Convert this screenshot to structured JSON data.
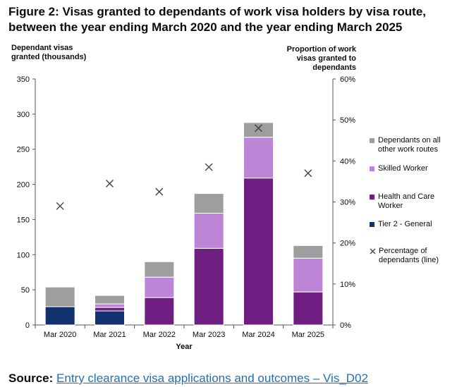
{
  "figure": {
    "title": "Figure 2: Visas granted to dependants of work visa holders by visa route, between the year ending March 2020 and the year ending March 2025"
  },
  "source": {
    "label": "Source:",
    "link_text": "Entry clearance visa applications and outcomes – Vis_D02"
  },
  "colors": {
    "tier2_general": "#12316f",
    "health_and_care": "#6e1f81",
    "skilled_worker": "#be84d5",
    "other_work_routes": "#9e9e9e",
    "line_marker": "#404040",
    "link": "#1d70b8"
  },
  "chart_data": {
    "type": "bar",
    "stacked": true,
    "categories": [
      "Mar 2020",
      "Mar 2021",
      "Mar 2022",
      "Mar 2023",
      "Mar 2024",
      "Mar 2025"
    ],
    "xlabel": "Year",
    "ylabel": "Dependant visas granted (thousands)",
    "y2label": "Proportion of work visas granted to dependants",
    "ylim": [
      0,
      350
    ],
    "yticks": [
      0,
      50,
      100,
      150,
      200,
      250,
      300,
      350
    ],
    "y2lim": [
      0,
      60
    ],
    "y2ticks": [
      "0%",
      "10%",
      "20%",
      "30%",
      "40%",
      "50%",
      "60%"
    ],
    "grid": false,
    "legend_position": "right",
    "series": [
      {
        "name": "Tier 2 - General",
        "color_key": "tier2_general",
        "values": [
          26,
          20,
          0,
          0,
          0,
          0
        ]
      },
      {
        "name": "Health and Care Worker",
        "color_key": "health_and_care",
        "values": [
          0,
          5,
          39,
          109,
          209,
          47
        ]
      },
      {
        "name": "Skilled Worker",
        "color_key": "skilled_worker",
        "values": [
          0,
          5,
          29,
          50,
          58,
          48
        ]
      },
      {
        "name": "Dependants on all other work routes",
        "color_key": "other_work_routes",
        "values": [
          28,
          12,
          22,
          28,
          21,
          18
        ]
      }
    ],
    "line_series": {
      "name": "Percentage of dependants (line)",
      "axis": "right",
      "marker": "x",
      "values": [
        29,
        34.5,
        32.5,
        38.5,
        48,
        37
      ]
    },
    "legend_order": [
      "Dependants on all other work routes",
      "Skilled Worker",
      "Health and Care Worker",
      "Tier 2 - General",
      "Percentage of dependants (line)"
    ]
  }
}
